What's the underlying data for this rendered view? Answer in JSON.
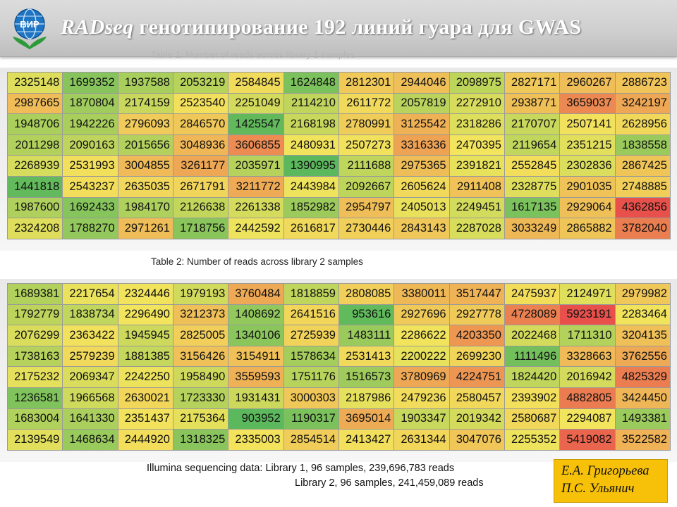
{
  "header": {
    "title_em": "RADseq",
    "title_rest": " генотипирование 192 линий гуара для GWAS",
    "logo_text": "ВИР"
  },
  "ghost_caption": "Table 1: Number of reads across library 1 samples",
  "table2_caption": "Table 2: Number  of reads across library 2 samples",
  "table1": [
    [
      2325148,
      1699352,
      1937588,
      2053219,
      2584845,
      1624848,
      2812301,
      2944046,
      2098975,
      2827171,
      2960267,
      2886723
    ],
    [
      2987665,
      1870804,
      2174159,
      2523540,
      2251049,
      2114210,
      2611772,
      2057819,
      2272910,
      2938771,
      3659037,
      3242197
    ],
    [
      1948706,
      1942226,
      2796093,
      2846570,
      1425547,
      2168198,
      2780991,
      3125542,
      2318286,
      2170707,
      2507141,
      2628956
    ],
    [
      2011298,
      2090163,
      2015656,
      3048936,
      3606855,
      2480931,
      2507273,
      3316336,
      2470395,
      2119654,
      2351215,
      1838558
    ],
    [
      2268939,
      2531993,
      3004855,
      3261177,
      2035971,
      1390995,
      2111688,
      2975365,
      2391821,
      2552845,
      2302836,
      2867425
    ],
    [
      1441818,
      2543237,
      2635035,
      2671791,
      3211772,
      2443984,
      2092667,
      2605624,
      2911408,
      2328775,
      2901035,
      2748885
    ],
    [
      1987600,
      1692433,
      1984170,
      2126638,
      2261338,
      1852982,
      2954797,
      2405013,
      2249451,
      1617135,
      2929064,
      4362856
    ],
    [
      2324208,
      1788270,
      2971261,
      1718756,
      2442592,
      2616817,
      2730446,
      2843143,
      2287028,
      3033249,
      2865882,
      3782040
    ]
  ],
  "table2": [
    [
      1689381,
      2217654,
      2324446,
      1979193,
      3760484,
      1818859,
      2808085,
      3380011,
      3517447,
      2475937,
      2124971,
      2979982
    ],
    [
      1792779,
      1838734,
      2296490,
      3212373,
      1408692,
      2641516,
      953616,
      2927696,
      2927778,
      4728089,
      5923191,
      2283464
    ],
    [
      2076299,
      2363422,
      1945945,
      2825005,
      1340106,
      2725939,
      1483111,
      2286622,
      4203350,
      2022468,
      1711310,
      3204135
    ],
    [
      1738163,
      2579239,
      1881385,
      3156426,
      3154911,
      1578634,
      2531413,
      2200222,
      2699230,
      1111496,
      3328663,
      3762556
    ],
    [
      2175232,
      2069347,
      2242250,
      1958490,
      3559593,
      1751176,
      1516573,
      3780969,
      4224751,
      1824420,
      2016942,
      4825329
    ],
    [
      1236581,
      1966568,
      2630021,
      1723330,
      1931431,
      3000303,
      2187986,
      2479236,
      2580457,
      2393902,
      4882805,
      3424450
    ],
    [
      1683004,
      1641330,
      2351437,
      2175364,
      903952,
      1190317,
      3695014,
      1903347,
      2019342,
      2580687,
      2294087,
      1493381
    ],
    [
      2139549,
      1468634,
      2444920,
      1318325,
      2335003,
      2854514,
      2413427,
      2631344,
      3047076,
      2255352,
      5419082,
      3522582
    ]
  ],
  "summary": {
    "line1": "Illumina sequencing data: Library 1, 96 samples,  239,696,783 reads",
    "line2": "Library 2, 96 samples,  241,459,089 reads"
  },
  "authors": [
    "Е.А. Григорьева",
    "П.С. Ульянич"
  ],
  "colors": {
    "low": "#5cb85c",
    "mid": "#f2e45c",
    "high": "#e8514b"
  }
}
